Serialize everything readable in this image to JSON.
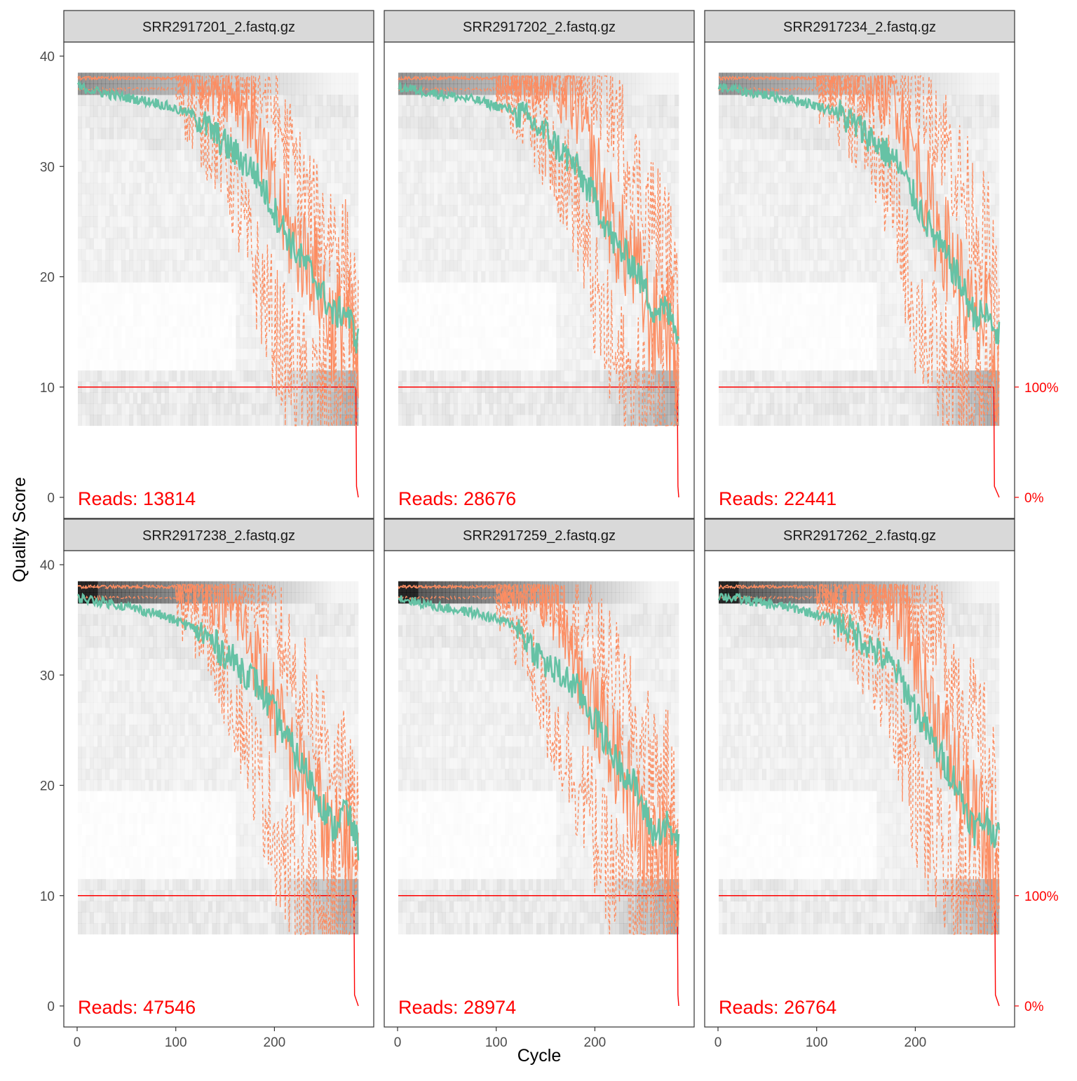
{
  "chart_data": {
    "type": "line",
    "title": "",
    "xlabel": "Cycle",
    "ylabel": "Quality Score",
    "xlim": [
      0,
      285
    ],
    "ylim": [
      0,
      40
    ],
    "x_ticks": [
      "0",
      "100",
      "200"
    ],
    "y_ticks": [
      "0",
      "10",
      "20",
      "30",
      "40"
    ],
    "secondary_y": {
      "ticks": [
        "0%",
        "100%"
      ],
      "color": "#ff0000",
      "description": "fraction of reads reaching cycle, 0%→Q0, 100%→Q10"
    },
    "colors": {
      "mean": "#66c2a5",
      "quantile": "#fc8d62",
      "read_fraction": "#ff0000",
      "heatmap": "#000000"
    },
    "legend_hidden": true,
    "panels": [
      {
        "file": "SRR2917201_2.fastq.gz",
        "reads_label": "Reads:  13814",
        "mean": {
          "x": [
            1,
            40,
            80,
            120,
            150,
            180,
            200,
            220,
            240,
            260,
            272,
            285
          ],
          "y": [
            37.2,
            36.4,
            35.8,
            34.6,
            32.0,
            29.5,
            26.0,
            22.5,
            20.0,
            16.5,
            17.0,
            14.0
          ]
        },
        "median": {
          "x": [
            1,
            120,
            160,
            180,
            200,
            220,
            240,
            260,
            272,
            285
          ],
          "y": [
            38.0,
            38.0,
            37.0,
            34.0,
            27.0,
            23.0,
            21.0,
            15.0,
            17.0,
            11.0
          ]
        },
        "q25": {
          "x": [
            1,
            100,
            130,
            150,
            170,
            190,
            210,
            230,
            250,
            270,
            285
          ],
          "y": [
            37.0,
            37.0,
            33.0,
            31.0,
            24.0,
            18.0,
            13.0,
            10.0,
            9.0,
            7.5,
            8.0
          ]
        },
        "q75": {
          "x": [
            1,
            180,
            200,
            220,
            240,
            260,
            275,
            285
          ],
          "y": [
            38.0,
            38.0,
            35.0,
            30.0,
            25.0,
            24.0,
            20.0,
            14.0
          ]
        },
        "frac_drop_cycle": 282
      },
      {
        "file": "SRR2917202_2.fastq.gz",
        "reads_label": "Reads:  28676",
        "mean": {
          "x": [
            1,
            40,
            80,
            120,
            150,
            180,
            200,
            220,
            240,
            260,
            272,
            285
          ],
          "y": [
            37.2,
            36.6,
            36.0,
            35.0,
            33.0,
            30.0,
            27.0,
            23.0,
            21.0,
            17.0,
            17.0,
            15.0
          ]
        },
        "median": {
          "x": [
            1,
            150,
            180,
            200,
            220,
            240,
            260,
            272,
            285
          ],
          "y": [
            38.0,
            38.0,
            36.0,
            30.0,
            24.0,
            21.0,
            15.0,
            17.0,
            12.0
          ]
        },
        "q25": {
          "x": [
            1,
            110,
            140,
            160,
            180,
            200,
            220,
            240,
            260,
            285
          ],
          "y": [
            37.0,
            37.0,
            34.0,
            31.0,
            27.0,
            18.0,
            12.0,
            9.0,
            7.5,
            8.0
          ]
        },
        "q75": {
          "x": [
            1,
            200,
            220,
            240,
            260,
            275,
            285
          ],
          "y": [
            38.0,
            38.0,
            35.0,
            29.0,
            25.0,
            22.0,
            14.0
          ]
        },
        "frac_drop_cycle": 283
      },
      {
        "file": "SRR2917234_2.fastq.gz",
        "reads_label": "Reads:  22441",
        "mean": {
          "x": [
            1,
            40,
            80,
            120,
            150,
            180,
            200,
            220,
            240,
            260,
            272,
            285
          ],
          "y": [
            37.2,
            36.6,
            36.0,
            35.0,
            33.0,
            30.5,
            27.0,
            23.5,
            20.5,
            16.5,
            16.5,
            14.5
          ]
        },
        "median": {
          "x": [
            1,
            150,
            180,
            200,
            220,
            240,
            260,
            272,
            285
          ],
          "y": [
            38.0,
            38.0,
            36.5,
            31.0,
            25.0,
            21.0,
            15.0,
            16.0,
            11.0
          ]
        },
        "q25": {
          "x": [
            1,
            110,
            140,
            160,
            180,
            200,
            220,
            240,
            260,
            285
          ],
          "y": [
            37.0,
            37.0,
            34.0,
            31.0,
            26.0,
            17.0,
            13.0,
            9.0,
            7.5,
            8.0
          ]
        },
        "q75": {
          "x": [
            1,
            200,
            220,
            240,
            260,
            275,
            285
          ],
          "y": [
            38.0,
            38.0,
            35.0,
            30.0,
            25.0,
            22.0,
            14.0
          ]
        },
        "frac_drop_cycle": 279
      },
      {
        "file": "SRR2917238_2.fastq.gz",
        "reads_label": "Reads:  47546",
        "mean": {
          "x": [
            1,
            40,
            80,
            120,
            150,
            180,
            200,
            220,
            240,
            260,
            272,
            285
          ],
          "y": [
            37.0,
            36.4,
            35.6,
            34.2,
            32.0,
            29.5,
            26.5,
            23.0,
            20.0,
            16.0,
            18.0,
            14.5
          ]
        },
        "median": {
          "x": [
            1,
            130,
            160,
            180,
            200,
            220,
            240,
            260,
            272,
            285
          ],
          "y": [
            38.0,
            38.0,
            36.0,
            32.0,
            27.0,
            22.0,
            19.0,
            14.0,
            16.0,
            11.0
          ]
        },
        "q25": {
          "x": [
            1,
            100,
            130,
            150,
            170,
            190,
            210,
            230,
            250,
            270,
            285
          ],
          "y": [
            37.0,
            37.0,
            34.0,
            30.0,
            25.0,
            19.0,
            13.0,
            10.0,
            9.0,
            7.5,
            8.0
          ]
        },
        "q75": {
          "x": [
            1,
            180,
            200,
            220,
            240,
            260,
            275,
            285
          ],
          "y": [
            38.0,
            38.0,
            35.0,
            30.0,
            26.0,
            23.0,
            19.0,
            14.0
          ]
        },
        "frac_drop_cycle": 280
      },
      {
        "file": "SRR2917259_2.fastq.gz",
        "reads_label": "Reads:  28974",
        "mean": {
          "x": [
            1,
            40,
            80,
            120,
            150,
            180,
            200,
            220,
            240,
            260,
            272,
            285
          ],
          "y": [
            37.0,
            36.2,
            35.6,
            34.5,
            31.0,
            29.0,
            26.0,
            22.5,
            20.0,
            15.5,
            16.5,
            14.5
          ]
        },
        "median": {
          "x": [
            1,
            140,
            170,
            190,
            210,
            230,
            250,
            270,
            285
          ],
          "y": [
            38.0,
            38.0,
            35.0,
            29.0,
            25.0,
            21.0,
            15.0,
            14.0,
            13.0
          ]
        },
        "q25": {
          "x": [
            1,
            100,
            130,
            150,
            170,
            190,
            210,
            230,
            250,
            270,
            285
          ],
          "y": [
            37.0,
            37.0,
            33.0,
            27.0,
            23.0,
            19.0,
            13.0,
            10.0,
            8.5,
            7.5,
            8.0
          ]
        },
        "q75": {
          "x": [
            1,
            150,
            180,
            200,
            220,
            240,
            260,
            275,
            285
          ],
          "y": [
            38.0,
            38.0,
            36.0,
            33.0,
            30.0,
            25.0,
            22.0,
            20.0,
            14.0
          ]
        },
        "frac_drop_cycle": 283
      },
      {
        "file": "SRR2917262_2.fastq.gz",
        "reads_label": "Reads:  26764",
        "mean": {
          "x": [
            1,
            40,
            80,
            120,
            150,
            180,
            200,
            220,
            240,
            260,
            272,
            285
          ],
          "y": [
            37.2,
            36.6,
            36.0,
            35.0,
            33.0,
            30.5,
            27.0,
            23.5,
            20.5,
            16.0,
            17.0,
            15.0
          ]
        },
        "median": {
          "x": [
            1,
            160,
            190,
            210,
            230,
            250,
            270,
            285
          ],
          "y": [
            38.0,
            38.0,
            35.0,
            29.0,
            24.0,
            19.0,
            15.0,
            13.0
          ]
        },
        "q25": {
          "x": [
            1,
            110,
            140,
            160,
            180,
            200,
            220,
            240,
            260,
            285
          ],
          "y": [
            37.0,
            37.0,
            33.0,
            31.0,
            27.0,
            19.0,
            14.0,
            10.0,
            8.0,
            8.0
          ]
        },
        "q75": {
          "x": [
            1,
            200,
            220,
            240,
            260,
            275,
            285
          ],
          "y": [
            38.0,
            38.0,
            35.0,
            30.0,
            25.0,
            22.0,
            15.0
          ]
        },
        "frac_drop_cycle": 280
      }
    ]
  }
}
